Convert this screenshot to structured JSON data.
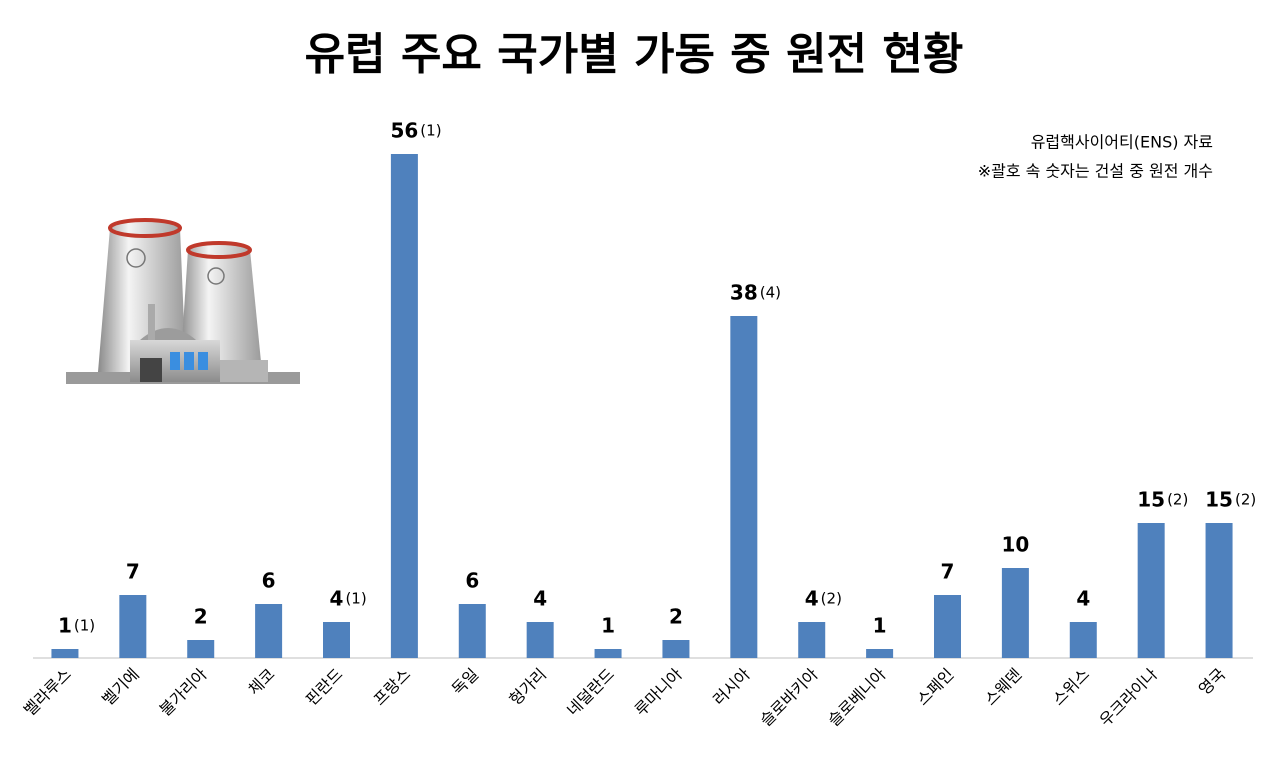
{
  "chart_data": {
    "type": "bar",
    "title": "유럽 주요 국가별 가동 중 원전 현황",
    "annotations": [
      "유럽핵사이어티(ENS) 자료",
      "※괄호 속 숫자는 건설 중 원전 개수"
    ],
    "categories": [
      "벨라루스",
      "벨기에",
      "불가리아",
      "체코",
      "핀란드",
      "프랑스",
      "독일",
      "헝가리",
      "네덜란드",
      "루마니아",
      "러시아",
      "슬로바키아",
      "슬로베니아",
      "스페인",
      "스웨덴",
      "스위스",
      "우크라이나",
      "영국"
    ],
    "values": [
      1,
      7,
      2,
      6,
      4,
      56,
      6,
      4,
      1,
      2,
      38,
      4,
      1,
      7,
      10,
      4,
      15,
      15
    ],
    "construction_labels": [
      "(1)",
      null,
      null,
      null,
      "(1)",
      "(1)",
      null,
      null,
      null,
      null,
      "(4)",
      "(2)",
      null,
      null,
      null,
      null,
      "(2)",
      "(2)"
    ],
    "color": "#4f81bd",
    "ylim": [
      0,
      56
    ]
  }
}
